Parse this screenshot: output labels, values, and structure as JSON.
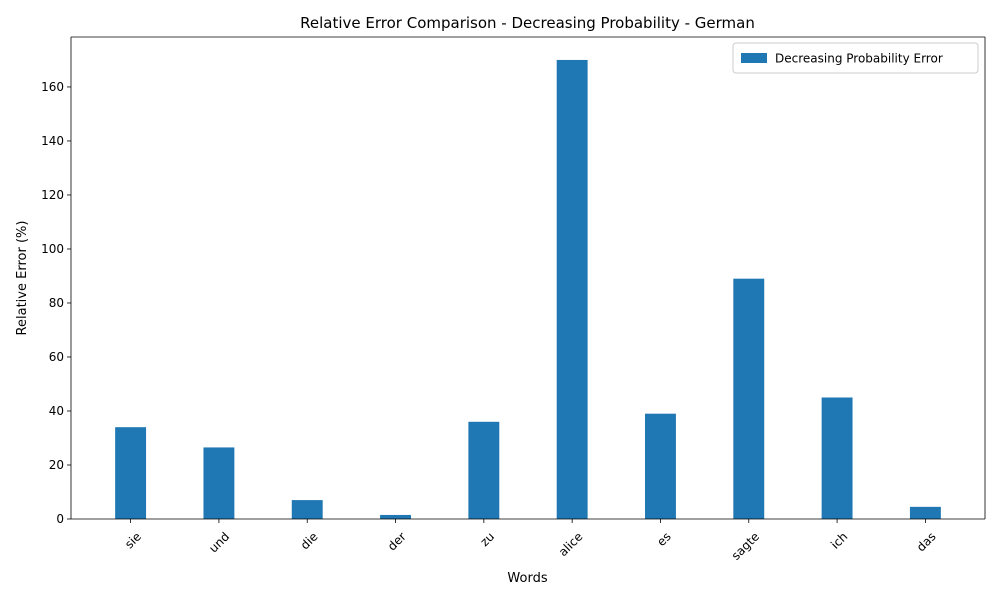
{
  "chart_data": {
    "type": "bar",
    "title": "Relative Error Comparison - Decreasing Probability - German",
    "xlabel": "Words",
    "ylabel": "Relative Error (%)",
    "categories": [
      "sie",
      "und",
      "die",
      "der",
      "zu",
      "alice",
      "es",
      "sagte",
      "ich",
      "das"
    ],
    "series": [
      {
        "name": "Decreasing Probability Error",
        "color": "#1f77b4",
        "values": [
          34.0,
          26.5,
          7.0,
          1.5,
          36.0,
          170.0,
          39.0,
          89.0,
          45.0,
          4.5
        ]
      }
    ],
    "ylim": [
      0,
      178.5
    ],
    "yticks": [
      0,
      20,
      40,
      60,
      80,
      100,
      120,
      140,
      160
    ],
    "grid": false,
    "legend_position": "upper right",
    "xtick_rotation_deg": 45
  }
}
